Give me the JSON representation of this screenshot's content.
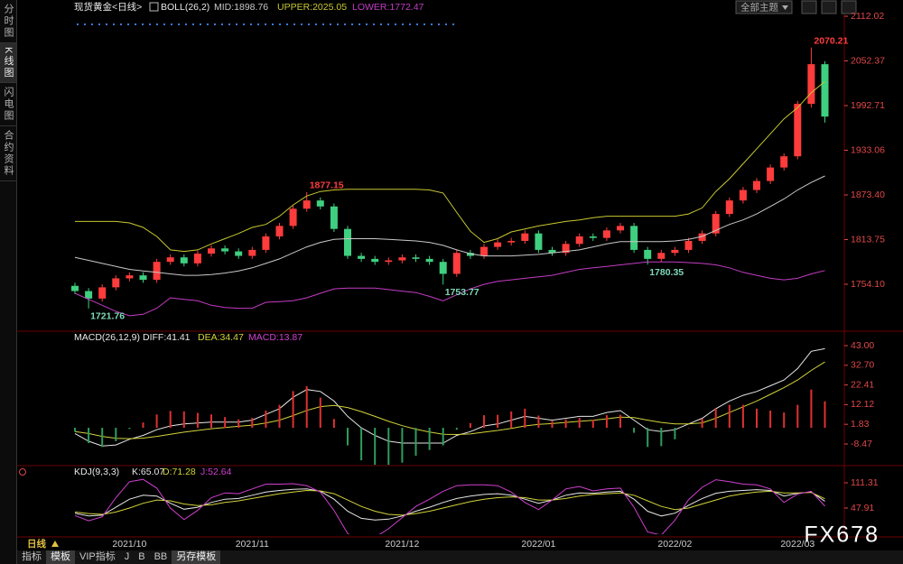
{
  "ui": {
    "sidebar": [
      "分时图",
      "K线图",
      "闪电图",
      "合约资料"
    ],
    "theme_select": "全部主题",
    "period": "日线",
    "tabs": [
      "指标",
      "模板",
      "VIP指标",
      "J",
      "B",
      "BB",
      "另存模板"
    ],
    "watermark": "FX678"
  },
  "chart_data": [
    {
      "type": "candlestick",
      "title": "现货黄金<日线>",
      "indicator": "BOLL(26,2)",
      "up_color": "#ff3c3c",
      "down_color": "#3fcf80",
      "open": [
        1752,
        1745,
        1735,
        1750,
        1762,
        1766,
        1760,
        1784,
        1790,
        1782,
        1795,
        1802,
        1798,
        1792,
        1800,
        1818,
        1832,
        1855,
        1866,
        1858,
        1828,
        1792,
        1788,
        1784,
        1786,
        1790,
        1788,
        1784,
        1768,
        1796,
        1792,
        1804,
        1810,
        1812,
        1822,
        1800,
        1796,
        1808,
        1818,
        1816,
        1826,
        1832,
        1800,
        1788,
        1796,
        1800,
        1812,
        1822,
        1848,
        1866,
        1880,
        1892,
        1910,
        1925,
        1995,
        2048
      ],
      "high": [
        1756,
        1749,
        1754,
        1766,
        1770,
        1770,
        1788,
        1794,
        1794,
        1799,
        1806,
        1806,
        1802,
        1804,
        1822,
        1836,
        1859,
        1877.15,
        1870,
        1862,
        1832,
        1796,
        1792,
        1790,
        1794,
        1794,
        1792,
        1788,
        1800,
        1800,
        1808,
        1814,
        1816,
        1826,
        1826,
        1804,
        1812,
        1822,
        1822,
        1830,
        1836,
        1836,
        1804,
        1800,
        1804,
        1816,
        1826,
        1852,
        1870,
        1884,
        1896,
        1914,
        1929,
        1999,
        2070.21,
        2052
      ],
      "low": [
        1741,
        1721.76,
        1731,
        1746,
        1758,
        1756,
        1756,
        1780,
        1778,
        1778,
        1791,
        1794,
        1788,
        1788,
        1796,
        1814,
        1828,
        1851,
        1854,
        1824,
        1788,
        1784,
        1780,
        1780,
        1782,
        1784,
        1780,
        1753.77,
        1764,
        1788,
        1788,
        1800,
        1806,
        1808,
        1796,
        1792,
        1792,
        1804,
        1812,
        1812,
        1822,
        1796,
        1780.35,
        1784,
        1792,
        1796,
        1808,
        1818,
        1844,
        1862,
        1876,
        1888,
        1906,
        1921,
        1990,
        1970
      ],
      "close": [
        1745,
        1735,
        1750,
        1762,
        1766,
        1760,
        1784,
        1790,
        1782,
        1795,
        1802,
        1798,
        1792,
        1800,
        1818,
        1832,
        1855,
        1866,
        1858,
        1828,
        1792,
        1788,
        1784,
        1786,
        1790,
        1788,
        1784,
        1768,
        1796,
        1792,
        1804,
        1810,
        1812,
        1822,
        1800,
        1796,
        1808,
        1818,
        1816,
        1826,
        1832,
        1800,
        1788,
        1796,
        1800,
        1812,
        1822,
        1848,
        1866,
        1880,
        1892,
        1910,
        1925,
        1995,
        2048,
        1978
      ],
      "series": [
        {
          "name": "MID:1898.76",
          "color": "#c8c8c8",
          "values": [
            1790,
            1786,
            1782,
            1778,
            1774,
            1772,
            1770,
            1768,
            1766,
            1766,
            1767,
            1769,
            1772,
            1776,
            1782,
            1788,
            1796,
            1804,
            1810,
            1814,
            1815,
            1815,
            1815,
            1814,
            1813,
            1812,
            1810,
            1806,
            1800,
            1795,
            1792,
            1792,
            1792,
            1793,
            1794,
            1796,
            1798,
            1800,
            1804,
            1808,
            1811,
            1811,
            1811,
            1811,
            1812,
            1814,
            1818,
            1826,
            1834,
            1840,
            1848,
            1858,
            1868,
            1880,
            1890,
            1898.76
          ]
        },
        {
          "name": "UPPER:2025.05",
          "color": "#c8c832",
          "values": [
            1838,
            1838,
            1838,
            1838,
            1836,
            1830,
            1818,
            1800,
            1798,
            1800,
            1808,
            1815,
            1822,
            1830,
            1834,
            1845,
            1860,
            1872,
            1878,
            1880,
            1881,
            1881,
            1881,
            1881,
            1881,
            1881,
            1880,
            1876,
            1850,
            1825,
            1810,
            1815,
            1824,
            1828,
            1832,
            1835,
            1838,
            1840,
            1843,
            1845,
            1845,
            1845,
            1845,
            1845,
            1845,
            1848,
            1856,
            1878,
            1895,
            1915,
            1935,
            1955,
            1975,
            1990,
            2010,
            2025.05
          ]
        },
        {
          "name": "LOWER:1772.47",
          "color": "#c43cc4",
          "values": [
            1742,
            1734,
            1726,
            1718,
            1712,
            1714,
            1722,
            1736,
            1734,
            1732,
            1726,
            1723,
            1722,
            1722,
            1730,
            1731,
            1732,
            1736,
            1742,
            1748,
            1749,
            1749,
            1749,
            1747,
            1745,
            1743,
            1738,
            1732,
            1740,
            1748,
            1754,
            1758,
            1760,
            1762,
            1764,
            1766,
            1770,
            1774,
            1776,
            1778,
            1780,
            1782,
            1784,
            1784,
            1784,
            1783,
            1782,
            1780,
            1776,
            1770,
            1766,
            1762,
            1760,
            1762,
            1768,
            1772.47
          ]
        }
      ],
      "ylim": [
        1693.85,
        2124.07
      ],
      "yticks": [
        2112.02,
        2052.37,
        1992.71,
        1933.06,
        {
          "value": 1873.4,
          "label": "1873.40"
        },
        1813.75,
        {
          "value": 1754.1,
          "label": "1754.10"
        }
      ],
      "grid": false
    },
    {
      "type": "line",
      "title": "MACD(26,12,9)",
      "series": [
        {
          "name": "DIFF:41.41",
          "color": "#e6e6e6",
          "values": [
            -3,
            -7,
            -9.5,
            -9,
            -6,
            -4,
            -1,
            1,
            2,
            2.5,
            3,
            3,
            3,
            4,
            7,
            10,
            16,
            20,
            19,
            14,
            6,
            0,
            -4,
            -7,
            -8,
            -8,
            -8,
            -8,
            -4,
            -2,
            1,
            2,
            4,
            6,
            5,
            4,
            5,
            6,
            6,
            8,
            9,
            4,
            -1,
            -2,
            -1,
            2,
            5,
            10,
            14,
            17,
            19,
            22,
            25,
            31,
            40,
            41.41
          ]
        },
        {
          "name": "DEA:34.47",
          "color": "#d2d23c",
          "values": [
            -2,
            -3,
            -4.5,
            -5.5,
            -5.7,
            -5.4,
            -4.5,
            -3.4,
            -2.3,
            -1.4,
            -0.5,
            0.2,
            0.8,
            1.4,
            2.5,
            4,
            6.4,
            9.1,
            11.1,
            11.7,
            10.6,
            8.5,
            6,
            3.4,
            1.1,
            -0.7,
            -2.2,
            -3.4,
            -3.5,
            -3.2,
            -2.3,
            -1.4,
            -0.3,
            1,
            1.8,
            2.2,
            2.8,
            3.4,
            3.9,
            4.7,
            5.6,
            5.3,
            4,
            2.8,
            2,
            2,
            2.6,
            5,
            8,
            11,
            14,
            17.5,
            21,
            25,
            30,
            34.47
          ]
        },
        {
          "name": "MACD:13.87",
          "type": "bar",
          "color": "#d040d0",
          "up_color": "#e03030",
          "down_color": "#2e9e5a",
          "values": [
            -2,
            -8,
            -10,
            -7,
            -0.6,
            2.8,
            7,
            8.8,
            8.6,
            7.8,
            7,
            5.6,
            4.4,
            5.2,
            9,
            12,
            19.2,
            21.8,
            15.8,
            4.6,
            -9.2,
            -17,
            -20,
            -20.8,
            -18.2,
            -14.6,
            -11.6,
            -9.2,
            -1,
            2.4,
            6.6,
            6.8,
            8.6,
            10,
            6.4,
            3.6,
            4.4,
            5.2,
            4.2,
            6.6,
            6.8,
            -2.6,
            -10,
            -9.6,
            -6,
            0,
            4.8,
            10,
            12,
            12,
            10,
            9,
            8,
            12,
            20,
            13.87
          ]
        }
      ],
      "ylim": [
        -19.32,
        49.13
      ],
      "yticks": [
        {
          "value": 43,
          "label": "43.00"
        },
        {
          "value": 32.7,
          "label": "32.70"
        },
        22.41,
        12.12,
        1.83,
        -8.47
      ],
      "grid": false
    },
    {
      "type": "line",
      "title": "KDJ(9,3,3)",
      "categories": [
        null,
        null,
        null,
        null,
        "2021/10",
        null,
        null,
        null,
        null,
        null,
        null,
        null,
        null,
        "2021/11",
        null,
        null,
        null,
        null,
        null,
        null,
        null,
        null,
        null,
        null,
        "2021/12",
        null,
        null,
        null,
        null,
        null,
        null,
        null,
        null,
        null,
        "2022/01",
        null,
        null,
        null,
        null,
        null,
        null,
        null,
        null,
        null,
        "2022/02",
        null,
        null,
        null,
        null,
        null,
        null,
        null,
        null,
        "2022/03",
        null,
        null
      ],
      "series": [
        {
          "name": "K:65.07",
          "color": "#e6e6e6",
          "values": [
            35,
            28,
            30,
            50,
            70,
            80,
            78,
            60,
            45,
            50,
            62,
            70,
            72,
            80,
            88,
            92,
            95,
            96,
            90,
            70,
            40,
            22,
            18,
            20,
            28,
            40,
            50,
            62,
            72,
            78,
            82,
            84,
            80,
            70,
            60,
            68,
            80,
            86,
            85,
            88,
            90,
            70,
            40,
            28,
            35,
            55,
            72,
            85,
            90,
            92,
            94,
            92,
            78,
            85,
            88,
            65.07
          ]
        },
        {
          "name": "D:71.28",
          "color": "#d2d23c",
          "values": [
            38,
            34,
            32,
            38,
            48,
            60,
            68,
            66,
            58,
            54,
            56,
            62,
            66,
            72,
            78,
            84,
            88,
            92,
            91,
            84,
            68,
            52,
            40,
            32,
            30,
            34,
            40,
            48,
            56,
            64,
            70,
            74,
            76,
            74,
            68,
            68,
            72,
            78,
            82,
            84,
            86,
            80,
            66,
            52,
            44,
            48,
            58,
            68,
            78,
            84,
            88,
            90,
            86,
            86,
            87,
            71.28
          ]
        },
        {
          "name": "J:52.64",
          "color": "#d040d0",
          "values": [
            29,
            16,
            26,
            74,
            114,
            120,
            98,
            48,
            19,
            42,
            74,
            86,
            84,
            96,
            108,
            108,
            109,
            104,
            88,
            42,
            -16,
            -38,
            -26,
            -4,
            24,
            52,
            70,
            90,
            104,
            106,
            106,
            104,
            88,
            62,
            44,
            68,
            96,
            102,
            91,
            96,
            98,
            50,
            -12,
            -20,
            17,
            69,
            100,
            119,
            114,
            108,
            106,
            96,
            62,
            83,
            90,
            52.64
          ]
        }
      ],
      "ylim": [
        -17.76,
        149.8
      ],
      "yticks": [
        111.31,
        47.91
      ],
      "grid": false
    }
  ]
}
